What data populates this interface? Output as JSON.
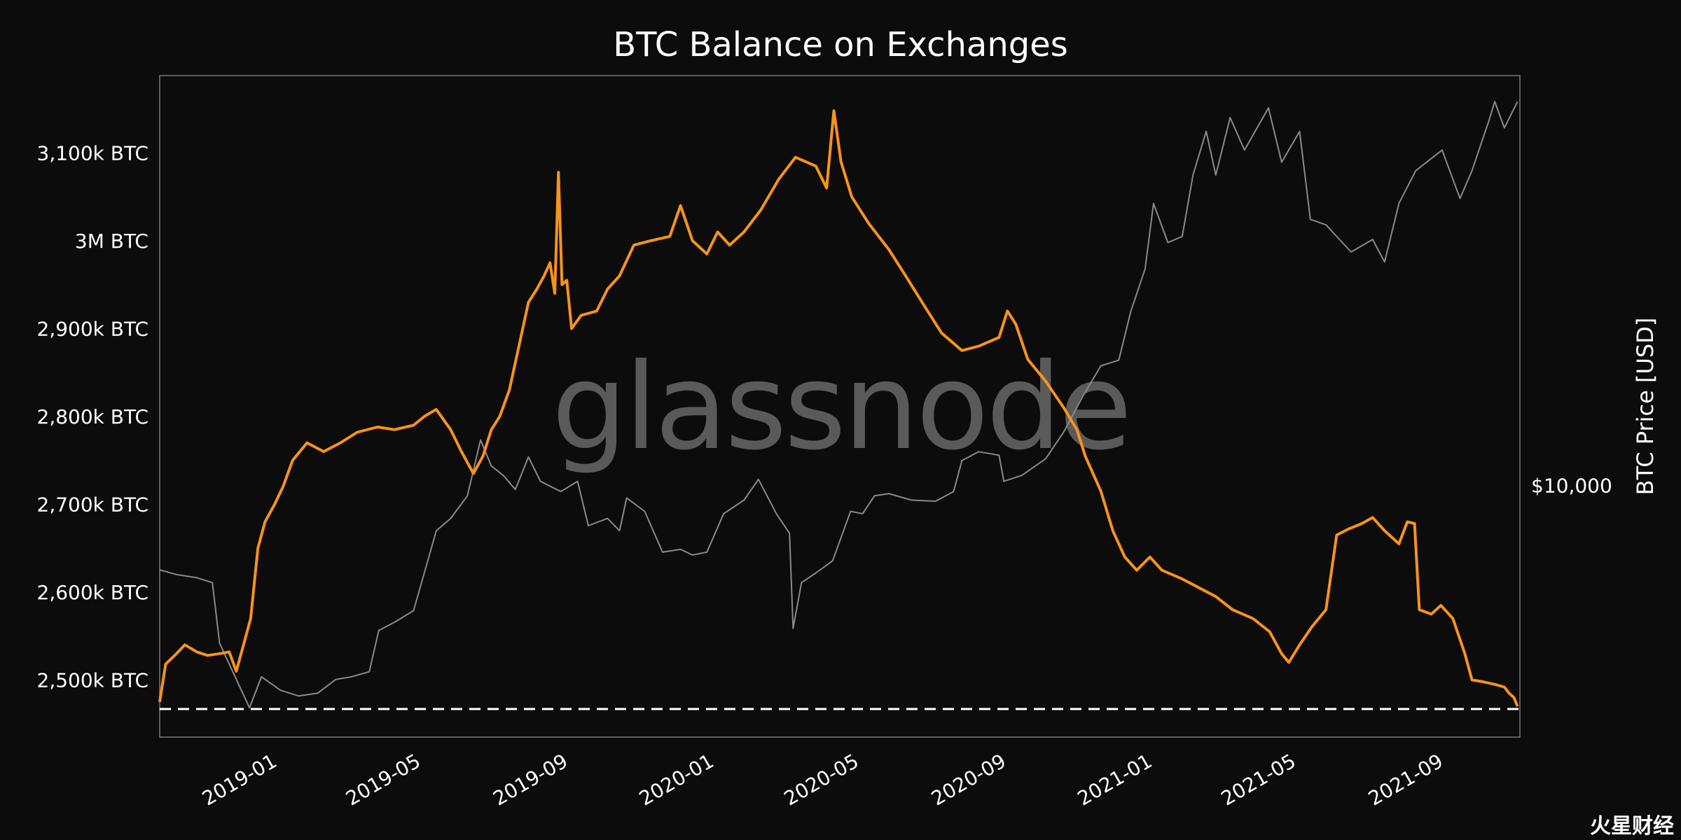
{
  "chart_data": {
    "type": "line",
    "title": "BTC Balance on Exchanges",
    "right_ylabel": "BTC Price [USD]",
    "watermark": "glassnode",
    "x_tick_labels": [
      "2019-01",
      "2019-05",
      "2019-09",
      "2020-01",
      "2020-05",
      "2020-09",
      "2021-01",
      "2021-05",
      "2021-09"
    ],
    "x_ticks": [
      "2019-01-01",
      "2019-05-01",
      "2019-09-01",
      "2020-01-01",
      "2020-05-01",
      "2020-09-01",
      "2021-01-01",
      "2021-05-01",
      "2021-09-01"
    ],
    "xlim": [
      "2018-10-01",
      "2021-11-10"
    ],
    "left_y_tick_labels": [
      "2,500k BTC",
      "2,600k BTC",
      "2,700k BTC",
      "2,800k BTC",
      "2,900k BTC",
      "3M BTC",
      "3,100k BTC"
    ],
    "left_y_ticks": [
      2500000,
      2600000,
      2700000,
      2800000,
      2900000,
      3000000,
      3100000
    ],
    "left_ylim": [
      2435000,
      3188000
    ],
    "right_y_tick_labels": [
      "$10,000"
    ],
    "right_y_ticks": [
      10000
    ],
    "right_scale": "log",
    "right_ylim": [
      2900,
      75000
    ],
    "reference_line": {
      "y": 2467000,
      "style": "dashed",
      "color": "#ffffff"
    },
    "grid": false,
    "series": [
      {
        "axis": "left",
        "color": "#f7931a",
        "points": [
          [
            "2018-10-01",
            2475000
          ],
          [
            "2018-10-06",
            2518000
          ],
          [
            "2018-10-15",
            2530000
          ],
          [
            "2018-10-22",
            2540000
          ],
          [
            "2018-11-01",
            2532000
          ],
          [
            "2018-11-10",
            2528000
          ],
          [
            "2018-11-20",
            2530000
          ],
          [
            "2018-11-28",
            2532000
          ],
          [
            "2018-12-04",
            2510000
          ],
          [
            "2018-12-10",
            2540000
          ],
          [
            "2018-12-16",
            2570000
          ],
          [
            "2018-12-22",
            2650000
          ],
          [
            "2018-12-28",
            2680000
          ],
          [
            "2019-01-05",
            2700000
          ],
          [
            "2019-01-12",
            2720000
          ],
          [
            "2019-01-20",
            2750000
          ],
          [
            "2019-02-01",
            2770000
          ],
          [
            "2019-02-15",
            2760000
          ],
          [
            "2019-03-01",
            2770000
          ],
          [
            "2019-03-15",
            2782000
          ],
          [
            "2019-04-01",
            2788000
          ],
          [
            "2019-04-15",
            2785000
          ],
          [
            "2019-05-01",
            2790000
          ],
          [
            "2019-05-10",
            2800000
          ],
          [
            "2019-05-20",
            2808000
          ],
          [
            "2019-06-01",
            2785000
          ],
          [
            "2019-06-10",
            2760000
          ],
          [
            "2019-06-20",
            2735000
          ],
          [
            "2019-06-28",
            2755000
          ],
          [
            "2019-07-05",
            2785000
          ],
          [
            "2019-07-12",
            2800000
          ],
          [
            "2019-07-20",
            2830000
          ],
          [
            "2019-07-28",
            2880000
          ],
          [
            "2019-08-05",
            2930000
          ],
          [
            "2019-08-12",
            2945000
          ],
          [
            "2019-08-18",
            2960000
          ],
          [
            "2019-08-23",
            2975000
          ],
          [
            "2019-08-27",
            2940000
          ],
          [
            "2019-08-30",
            3078000
          ],
          [
            "2019-09-02",
            2950000
          ],
          [
            "2019-09-06",
            2955000
          ],
          [
            "2019-09-10",
            2900000
          ],
          [
            "2019-09-18",
            2915000
          ],
          [
            "2019-10-01",
            2920000
          ],
          [
            "2019-10-10",
            2945000
          ],
          [
            "2019-10-20",
            2960000
          ],
          [
            "2019-11-01",
            2995000
          ],
          [
            "2019-11-15",
            3000000
          ],
          [
            "2019-12-01",
            3005000
          ],
          [
            "2019-12-10",
            3040000
          ],
          [
            "2019-12-20",
            3000000
          ],
          [
            "2020-01-01",
            2985000
          ],
          [
            "2020-01-10",
            3010000
          ],
          [
            "2020-01-20",
            2995000
          ],
          [
            "2020-02-01",
            3010000
          ],
          [
            "2020-02-15",
            3035000
          ],
          [
            "2020-03-01",
            3070000
          ],
          [
            "2020-03-15",
            3095000
          ],
          [
            "2020-04-01",
            3085000
          ],
          [
            "2020-04-10",
            3060000
          ],
          [
            "2020-04-16",
            3148000
          ],
          [
            "2020-04-22",
            3090000
          ],
          [
            "2020-05-01",
            3050000
          ],
          [
            "2020-05-15",
            3020000
          ],
          [
            "2020-06-01",
            2990000
          ],
          [
            "2020-06-15",
            2960000
          ],
          [
            "2020-07-01",
            2925000
          ],
          [
            "2020-07-15",
            2895000
          ],
          [
            "2020-08-01",
            2875000
          ],
          [
            "2020-08-15",
            2880000
          ],
          [
            "2020-09-01",
            2890000
          ],
          [
            "2020-09-08",
            2920000
          ],
          [
            "2020-09-15",
            2905000
          ],
          [
            "2020-09-25",
            2865000
          ],
          [
            "2020-10-10",
            2840000
          ],
          [
            "2020-10-25",
            2810000
          ],
          [
            "2020-11-05",
            2785000
          ],
          [
            "2020-11-12",
            2755000
          ],
          [
            "2020-11-25",
            2715000
          ],
          [
            "2020-12-05",
            2670000
          ],
          [
            "2020-12-15",
            2640000
          ],
          [
            "2020-12-25",
            2625000
          ],
          [
            "2021-01-05",
            2640000
          ],
          [
            "2021-01-15",
            2625000
          ],
          [
            "2021-02-01",
            2615000
          ],
          [
            "2021-02-15",
            2605000
          ],
          [
            "2021-03-01",
            2595000
          ],
          [
            "2021-03-15",
            2580000
          ],
          [
            "2021-04-01",
            2570000
          ],
          [
            "2021-04-15",
            2555000
          ],
          [
            "2021-04-25",
            2530000
          ],
          [
            "2021-05-01",
            2520000
          ],
          [
            "2021-05-10",
            2540000
          ],
          [
            "2021-05-20",
            2560000
          ],
          [
            "2021-06-01",
            2580000
          ],
          [
            "2021-06-10",
            2665000
          ],
          [
            "2021-06-20",
            2672000
          ],
          [
            "2021-07-01",
            2678000
          ],
          [
            "2021-07-10",
            2685000
          ],
          [
            "2021-07-20",
            2670000
          ],
          [
            "2021-08-01",
            2655000
          ],
          [
            "2021-08-08",
            2680000
          ],
          [
            "2021-08-14",
            2678000
          ],
          [
            "2021-08-18",
            2580000
          ],
          [
            "2021-08-28",
            2575000
          ],
          [
            "2021-09-05",
            2585000
          ],
          [
            "2021-09-15",
            2570000
          ],
          [
            "2021-09-25",
            2530000
          ],
          [
            "2021-10-01",
            2500000
          ],
          [
            "2021-10-10",
            2498000
          ],
          [
            "2021-10-20",
            2495000
          ],
          [
            "2021-10-28",
            2492000
          ],
          [
            "2021-11-01",
            2485000
          ],
          [
            "2021-11-05",
            2480000
          ],
          [
            "2021-11-08",
            2470000
          ]
        ]
      },
      {
        "axis": "right",
        "color": "#8a8a8a",
        "points": [
          [
            "2018-10-01",
            6600
          ],
          [
            "2018-10-15",
            6450
          ],
          [
            "2018-11-01",
            6350
          ],
          [
            "2018-11-14",
            6200
          ],
          [
            "2018-11-20",
            4600
          ],
          [
            "2018-12-01",
            4000
          ],
          [
            "2018-12-15",
            3350
          ],
          [
            "2018-12-25",
            3900
          ],
          [
            "2019-01-10",
            3650
          ],
          [
            "2019-01-25",
            3550
          ],
          [
            "2019-02-10",
            3600
          ],
          [
            "2019-02-25",
            3850
          ],
          [
            "2019-03-10",
            3900
          ],
          [
            "2019-03-25",
            4000
          ],
          [
            "2019-04-02",
            4900
          ],
          [
            "2019-04-15",
            5100
          ],
          [
            "2019-05-01",
            5400
          ],
          [
            "2019-05-10",
            6500
          ],
          [
            "2019-05-20",
            8000
          ],
          [
            "2019-06-01",
            8500
          ],
          [
            "2019-06-15",
            9500
          ],
          [
            "2019-06-26",
            12500
          ],
          [
            "2019-07-05",
            11000
          ],
          [
            "2019-07-15",
            10500
          ],
          [
            "2019-07-25",
            9800
          ],
          [
            "2019-08-05",
            11500
          ],
          [
            "2019-08-15",
            10200
          ],
          [
            "2019-09-01",
            9700
          ],
          [
            "2019-09-15",
            10200
          ],
          [
            "2019-09-24",
            8200
          ],
          [
            "2019-10-10",
            8500
          ],
          [
            "2019-10-20",
            8000
          ],
          [
            "2019-10-26",
            9400
          ],
          [
            "2019-11-10",
            8800
          ],
          [
            "2019-11-25",
            7200
          ],
          [
            "2019-12-10",
            7300
          ],
          [
            "2019-12-20",
            7100
          ],
          [
            "2020-01-01",
            7200
          ],
          [
            "2020-01-15",
            8700
          ],
          [
            "2020-02-01",
            9300
          ],
          [
            "2020-02-13",
            10300
          ],
          [
            "2020-02-28",
            8700
          ],
          [
            "2020-03-10",
            7900
          ],
          [
            "2020-03-13",
            4950
          ],
          [
            "2020-03-20",
            6200
          ],
          [
            "2020-04-01",
            6500
          ],
          [
            "2020-04-15",
            6900
          ],
          [
            "2020-04-30",
            8800
          ],
          [
            "2020-05-10",
            8700
          ],
          [
            "2020-05-20",
            9500
          ],
          [
            "2020-06-01",
            9600
          ],
          [
            "2020-06-20",
            9300
          ],
          [
            "2020-07-10",
            9250
          ],
          [
            "2020-07-25",
            9700
          ],
          [
            "2020-08-01",
            11300
          ],
          [
            "2020-08-15",
            11800
          ],
          [
            "2020-09-01",
            11600
          ],
          [
            "2020-09-05",
            10200
          ],
          [
            "2020-09-20",
            10500
          ],
          [
            "2020-10-10",
            11400
          ],
          [
            "2020-10-25",
            13000
          ],
          [
            "2020-11-10",
            15500
          ],
          [
            "2020-11-25",
            18000
          ],
          [
            "2020-12-10",
            18500
          ],
          [
            "2020-12-20",
            23500
          ],
          [
            "2021-01-01",
            29000
          ],
          [
            "2021-01-08",
            40000
          ],
          [
            "2021-01-20",
            33000
          ],
          [
            "2021-02-01",
            34000
          ],
          [
            "2021-02-10",
            46000
          ],
          [
            "2021-02-21",
            57000
          ],
          [
            "2021-03-01",
            46000
          ],
          [
            "2021-03-13",
            61000
          ],
          [
            "2021-03-25",
            52000
          ],
          [
            "2021-04-14",
            64000
          ],
          [
            "2021-04-25",
            49000
          ],
          [
            "2021-05-10",
            57000
          ],
          [
            "2021-05-19",
            37000
          ],
          [
            "2021-06-01",
            36000
          ],
          [
            "2021-06-22",
            31500
          ],
          [
            "2021-07-10",
            33500
          ],
          [
            "2021-07-20",
            30000
          ],
          [
            "2021-08-01",
            40000
          ],
          [
            "2021-08-15",
            47000
          ],
          [
            "2021-09-06",
            52000
          ],
          [
            "2021-09-21",
            41000
          ],
          [
            "2021-10-01",
            47000
          ],
          [
            "2021-10-15",
            60000
          ],
          [
            "2021-10-20",
            66000
          ],
          [
            "2021-10-28",
            58000
          ],
          [
            "2021-11-08",
            66000
          ]
        ]
      }
    ]
  },
  "brand_text": "火星财经"
}
